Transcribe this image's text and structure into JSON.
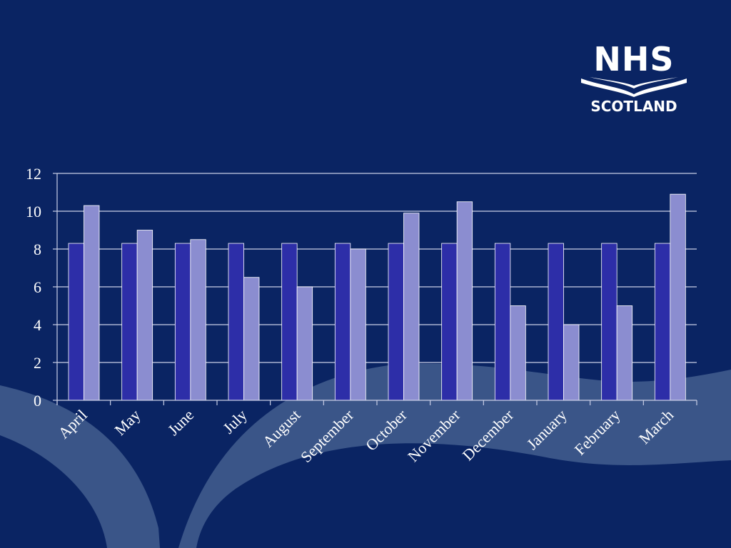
{
  "logo": {
    "line1": "NHS",
    "line2": "SCOTLAND"
  },
  "colors": {
    "background": "#0a2463",
    "decor": "#3a5588",
    "series1": "#2d2ea8",
    "series2": "#8b8dd0",
    "grid": "#c9cfe6",
    "text": "#ffffff"
  },
  "chart_data": {
    "type": "bar",
    "title": "",
    "xlabel": "",
    "ylabel": "",
    "ylim": [
      0,
      12
    ],
    "yticks": [
      0,
      2,
      4,
      6,
      8,
      10,
      12
    ],
    "grid": true,
    "legend": "none",
    "categories": [
      "April",
      "May",
      "June",
      "July",
      "August",
      "September",
      "October",
      "November",
      "December",
      "January",
      "February",
      "March"
    ],
    "series": [
      {
        "values": [
          8.3,
          8.3,
          8.3,
          8.3,
          8.3,
          8.3,
          8.3,
          8.3,
          8.3,
          8.3,
          8.3,
          8.3
        ]
      },
      {
        "values": [
          10.3,
          9.0,
          8.5,
          6.5,
          6.0,
          8.0,
          9.9,
          10.5,
          5.0,
          4.0,
          5.0,
          10.9
        ]
      }
    ]
  }
}
